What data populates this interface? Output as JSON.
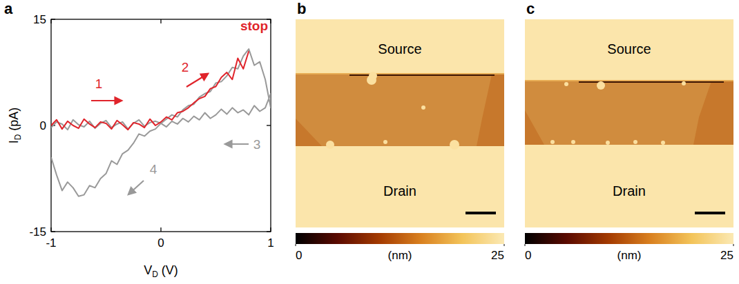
{
  "chart_data": {
    "type": "line",
    "panel_label": "a",
    "xlabel": {
      "symbol": "V",
      "subscript": "D",
      "unit": " (V)"
    },
    "ylabel": {
      "symbol": "I",
      "subscript": "D",
      "unit": " (pA)"
    },
    "xlim": [
      -1,
      1
    ],
    "xticks": [
      -1,
      0,
      1
    ],
    "ylim": [
      -15,
      15
    ],
    "yticks": [
      -15,
      0,
      15
    ],
    "grid": false,
    "series": [
      {
        "color": "#999999",
        "line_style": "solid",
        "x": [
          -1,
          -0.95,
          -0.9,
          -0.85,
          -0.8,
          -0.75,
          -0.7,
          -0.65,
          -0.6,
          -0.55,
          -0.5,
          -0.45,
          -0.4,
          -0.35,
          -0.3,
          -0.25,
          -0.2,
          -0.15,
          -0.1,
          -0.05,
          0,
          0.05,
          0.1,
          0.15,
          0.2,
          0.25,
          0.3,
          0.35,
          0.4,
          0.45,
          0.5,
          0.55,
          0.6,
          0.65,
          0.7,
          0.75,
          0.8,
          0.85,
          0.9,
          0.95,
          1,
          1,
          0.95,
          0.9,
          0.85,
          0.8,
          0.75,
          0.7,
          0.65,
          0.6,
          0.55,
          0.5,
          0.45,
          0.4,
          0.35,
          0.3,
          0.25,
          0.2,
          0.15,
          0.1,
          0.05,
          0,
          -0.05,
          -0.1,
          -0.15,
          -0.2,
          -0.25,
          -0.3,
          -0.35,
          -0.4,
          -0.45,
          -0.5,
          -0.55,
          -0.6,
          -0.65,
          -0.7,
          -0.75,
          -0.8,
          -0.85,
          -0.9,
          -0.95,
          -1
        ],
        "values": [
          -0.3,
          0.5,
          0.2,
          -0.6,
          0.8,
          0.1,
          -0.2,
          0.6,
          -0.4,
          0.3,
          0.7,
          -0.3,
          0.2,
          0.5,
          -0.5,
          0.3,
          0.8,
          -0.1,
          0.4,
          0.6,
          0.3,
          0.9,
          1.5,
          1.2,
          2.2,
          2.8,
          3.0,
          4.0,
          4.5,
          4.8,
          6.0,
          6.2,
          7.0,
          8.2,
          8.0,
          9.8,
          10.8,
          8.5,
          9.0,
          6.5,
          2.5,
          4.5,
          2.5,
          2.0,
          2.8,
          1.5,
          2.2,
          1.8,
          2.5,
          1.6,
          2.3,
          1.5,
          1.0,
          1.8,
          0.8,
          1.3,
          0.5,
          1.0,
          0.2,
          0.6,
          -0.2,
          0.3,
          -0.5,
          -0.8,
          -1.5,
          -1.2,
          -2.5,
          -3.5,
          -4.0,
          -5.5,
          -5.0,
          -6.8,
          -7.5,
          -8.8,
          -8.5,
          -9.8,
          -10.0,
          -8.8,
          -8.0,
          -9.2,
          -7.0,
          -4.5
        ]
      },
      {
        "color": "#e0242b",
        "line_style": "solid",
        "x": [
          -1,
          -0.95,
          -0.9,
          -0.85,
          -0.8,
          -0.75,
          -0.7,
          -0.65,
          -0.6,
          -0.55,
          -0.5,
          -0.45,
          -0.4,
          -0.35,
          -0.3,
          -0.25,
          -0.2,
          -0.15,
          -0.1,
          -0.05,
          0,
          0.05,
          0.1,
          0.15,
          0.2,
          0.25,
          0.3,
          0.35,
          0.4,
          0.45,
          0.5,
          0.55,
          0.6,
          0.65,
          0.7,
          0.75,
          0.8
        ],
        "values": [
          0,
          0.8,
          -0.5,
          0.6,
          0,
          -0.4,
          0.9,
          0.2,
          -0.3,
          0.5,
          0.3,
          -0.5,
          0.7,
          0.1,
          -0.6,
          0.4,
          0.2,
          -0.3,
          0.9,
          0,
          0.5,
          1.2,
          0.8,
          1.8,
          2.0,
          2.5,
          3.2,
          3.8,
          4.1,
          5.2,
          5.5,
          6.8,
          7.5,
          6.5,
          9.5,
          8.0,
          10.5
        ]
      }
    ],
    "annotations": [
      {
        "text": "1",
        "color": "#e0242b"
      },
      {
        "text": "2",
        "color": "#e0242b"
      },
      {
        "text": "stop",
        "color": "#e0242b"
      },
      {
        "text": "3",
        "color": "#999999"
      },
      {
        "text": "4",
        "color": "#999999"
      }
    ]
  },
  "images": [
    {
      "label": "b",
      "top_text": "Source",
      "bottom_text": "Drain",
      "colorbar": {
        "range": [
          0,
          25
        ],
        "ticks": [
          0,
          25
        ],
        "label": "(nm)"
      }
    },
    {
      "label": "c",
      "top_text": "Source",
      "bottom_text": "Drain",
      "colorbar": {
        "range": [
          0,
          25
        ],
        "ticks": [
          0,
          25
        ],
        "label": "(nm)"
      }
    }
  ]
}
